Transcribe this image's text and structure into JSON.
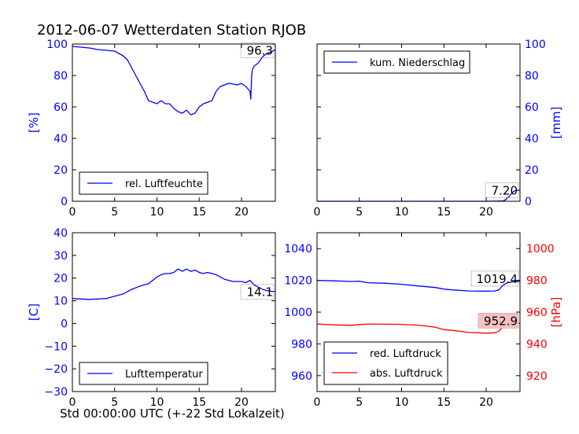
{
  "title": "2012-06-07 Wetterdaten Station RJOB",
  "footer_xlabel": "Std 00:00:00 UTC (+-22 Std Lokalzeit)",
  "colors": {
    "blue": "#0000ff",
    "red": "#ff0000",
    "black": "#000000",
    "annot_fill_red": "#f4c2c2"
  },
  "chart_data": [
    {
      "type": "line",
      "panel": "humidity",
      "ylabel": "[%]",
      "ylabel_color": "blue",
      "xlim": [
        0,
        24
      ],
      "ylim": [
        0,
        100
      ],
      "xticks": [
        "0",
        "5",
        "10",
        "15",
        "20"
      ],
      "yticks": [
        "0",
        "20",
        "40",
        "60",
        "80",
        "100"
      ],
      "legend": {
        "position": "lower-left",
        "entries": [
          {
            "label": "rel. Luftfeuchte",
            "color": "blue"
          }
        ]
      },
      "annotation": "96.3",
      "series": [
        {
          "name": "rel. Luftfeuchte",
          "color": "blue",
          "x": [
            0,
            1,
            2,
            3,
            4,
            5,
            5.5,
            6,
            6.5,
            7,
            7.5,
            8,
            8.5,
            9,
            9.5,
            10,
            10.5,
            11,
            11.5,
            12,
            12.5,
            13,
            13.5,
            14,
            14.5,
            15,
            15.5,
            16,
            16.5,
            17,
            17.5,
            18,
            18.5,
            19,
            19.5,
            20,
            20.5,
            21,
            21.1,
            21.2,
            21.3,
            21.5,
            22,
            22.5,
            23,
            23.5,
            24
          ],
          "y": [
            98.5,
            98,
            97.5,
            96.5,
            96,
            95.5,
            94,
            92.5,
            90,
            85,
            80,
            75,
            70,
            64,
            63,
            62,
            64,
            62,
            62,
            59,
            57,
            56,
            58,
            55,
            56,
            60,
            62,
            63,
            64,
            70,
            73,
            74,
            75,
            74.5,
            74,
            75,
            73,
            70,
            65,
            80,
            84,
            86,
            88,
            92,
            94,
            95,
            96.3
          ]
        }
      ]
    },
    {
      "type": "line",
      "panel": "precipitation",
      "ylabel": "[mm]",
      "ylabel_color": "blue",
      "xlim": [
        0,
        24
      ],
      "ylim": [
        0,
        100
      ],
      "xticks": [
        "0",
        "5",
        "10",
        "15",
        "20"
      ],
      "yticks": [
        "0",
        "20",
        "40",
        "60",
        "80",
        "100"
      ],
      "legend": {
        "position": "upper-left",
        "entries": [
          {
            "label": "kum. Niederschlag",
            "color": "blue"
          }
        ]
      },
      "annotation": "7.20",
      "series": [
        {
          "name": "kum. Niederschlag",
          "color": "blue",
          "x": [
            0,
            20,
            22,
            22.3,
            22.7,
            23,
            23.3,
            23.7,
            24
          ],
          "y": [
            0,
            0,
            0.2,
            1,
            3,
            5,
            6.5,
            7,
            7.2
          ]
        }
      ]
    },
    {
      "type": "line",
      "panel": "temperature",
      "ylabel": "[C]",
      "ylabel_color": "blue",
      "xlim": [
        0,
        24
      ],
      "ylim": [
        -30,
        40
      ],
      "xticks": [
        "0",
        "5",
        "10",
        "15",
        "20"
      ],
      "yticks": [
        "−30",
        "−20",
        "−10",
        "0",
        "10",
        "20",
        "30",
        "40"
      ],
      "legend": {
        "position": "lower-left",
        "entries": [
          {
            "label": "Lufttemperatur",
            "color": "blue"
          }
        ]
      },
      "annotation": "14.1",
      "series": [
        {
          "name": "Lufttemperatur",
          "color": "blue",
          "x": [
            0,
            1,
            2,
            3,
            4,
            5,
            6,
            7,
            8,
            9,
            9.5,
            10,
            10.5,
            11,
            11.5,
            12,
            12.5,
            13,
            13.5,
            14,
            14.5,
            15,
            15.5,
            16,
            16.5,
            17,
            18,
            19,
            20,
            20.5,
            21,
            21.5,
            22,
            22.5,
            23,
            23.5,
            24
          ],
          "y": [
            11,
            10.8,
            10.6,
            10.8,
            11,
            12,
            13,
            15,
            16.5,
            17.5,
            19,
            20.5,
            21.5,
            22,
            22,
            22.5,
            24,
            23,
            24,
            23,
            23.5,
            22.5,
            22,
            22.5,
            22,
            21.5,
            19.5,
            18.5,
            18.5,
            18,
            19,
            17,
            16,
            15,
            14.5,
            14.2,
            14.1
          ]
        }
      ]
    },
    {
      "type": "line",
      "panel": "pressure",
      "ylabel": "[hPa]",
      "ylabel_color": "red",
      "xlim": [
        0,
        24
      ],
      "ylim_left": [
        950,
        1050
      ],
      "ylim_right": [
        910,
        1010
      ],
      "xticks": [
        "0",
        "5",
        "10",
        "15",
        "20"
      ],
      "yticks_left": [
        "960",
        "980",
        "1000",
        "1020",
        "1040"
      ],
      "yticks_right": [
        "920",
        "940",
        "960",
        "980",
        "1000"
      ],
      "legend": {
        "position": "lower-left",
        "entries": [
          {
            "label": "red. Luftdruck",
            "color": "blue"
          },
          {
            "label": "abs. Luftdruck",
            "color": "red"
          }
        ]
      },
      "annotations": [
        {
          "text": "1019.4",
          "color": "black"
        },
        {
          "text": "952.9",
          "color": "red"
        }
      ],
      "series": [
        {
          "name": "red. Luftdruck",
          "color": "blue",
          "axis": "left",
          "x": [
            0,
            2,
            4,
            5,
            6,
            8,
            10,
            12,
            14,
            15,
            16,
            18,
            20,
            21,
            21.5,
            22,
            22.5,
            23,
            23.5,
            24
          ],
          "y": [
            1020,
            1019.7,
            1019.3,
            1019.5,
            1018.5,
            1018.2,
            1017.5,
            1016.5,
            1015.5,
            1014.5,
            1014,
            1013.3,
            1013.2,
            1013.3,
            1014,
            1017,
            1018.5,
            1019,
            1019.2,
            1019.4
          ]
        },
        {
          "name": "abs. Luftdruck",
          "color": "red",
          "axis": "right",
          "x": [
            0,
            2,
            4,
            5,
            6,
            8,
            10,
            12,
            14,
            15,
            16,
            18,
            20,
            21,
            21.5,
            22,
            22.5,
            23,
            23.5,
            24
          ],
          "y": [
            952.5,
            952,
            951.7,
            952.2,
            952.5,
            952.4,
            952.3,
            951.8,
            950.5,
            949,
            948.5,
            947.2,
            946.8,
            947,
            948,
            951,
            952,
            952.5,
            952.8,
            952.9
          ]
        }
      ]
    }
  ]
}
